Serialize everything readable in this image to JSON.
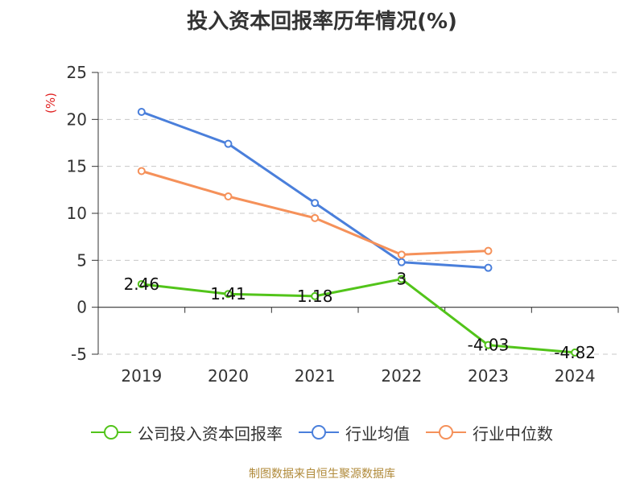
{
  "chart_data": {
    "type": "line",
    "title": "投入资本回报率历年情况(%)",
    "ylabel": "(%)",
    "xlabel": "",
    "categories": [
      "2019",
      "2020",
      "2021",
      "2022",
      "2023",
      "2024"
    ],
    "ylim": [
      -5,
      25
    ],
    "yticks": [
      25,
      20,
      15,
      10,
      5,
      0,
      -5
    ],
    "grid": true,
    "legend_position": "bottom",
    "series": [
      {
        "name": "公司投入资本回报率",
        "color": "#52c41a",
        "values": [
          2.46,
          1.41,
          1.18,
          3,
          -4.03,
          -4.82
        ],
        "labels": [
          "2.46",
          "1.41",
          "1.18",
          "3",
          "-4.03",
          "-4.82"
        ]
      },
      {
        "name": "行业均值",
        "color": "#4a7fdb",
        "values": [
          20.8,
          17.4,
          11.1,
          4.8,
          4.2,
          null
        ]
      },
      {
        "name": "行业中位数",
        "color": "#f5915a",
        "values": [
          14.5,
          11.8,
          9.5,
          5.6,
          6.0,
          null
        ]
      }
    ]
  },
  "source_note": "制图数据来自恒生聚源数据库"
}
